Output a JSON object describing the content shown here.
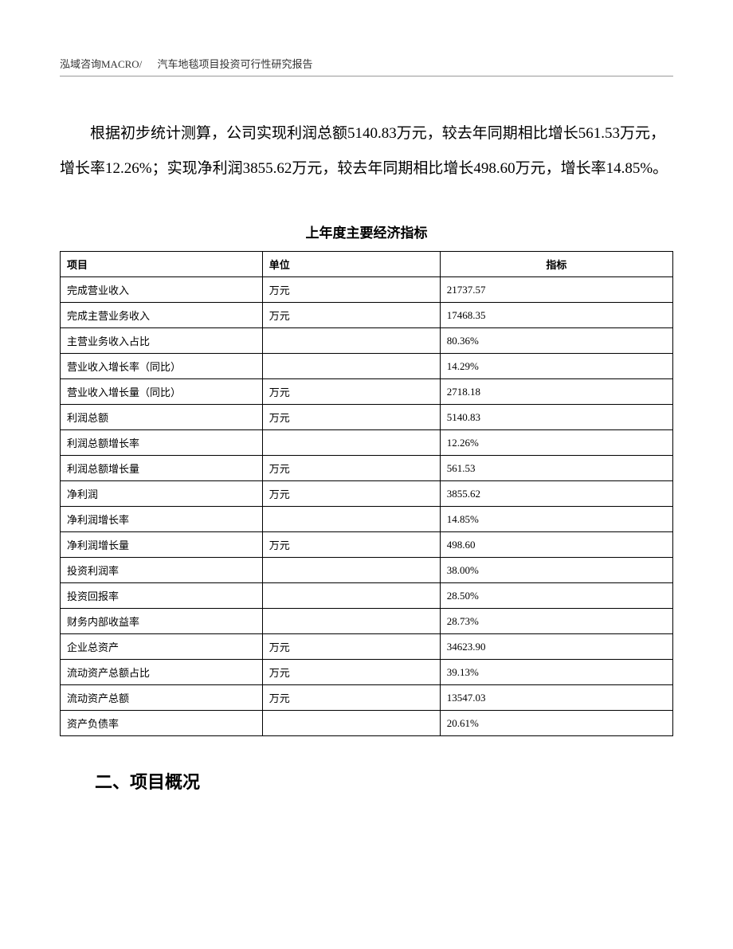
{
  "header": {
    "company": "泓域咨询MACRO/",
    "title": "汽车地毯项目投资可行性研究报告"
  },
  "body_paragraph": "根据初步统计测算，公司实现利润总额5140.83万元，较去年同期相比增长561.53万元，增长率12.26%；实现净利润3855.62万元，较去年同期相比增长498.60万元，增长率14.85%。",
  "table": {
    "title": "上年度主要经济指标",
    "columns": [
      "项目",
      "单位",
      "指标"
    ],
    "rows": [
      [
        "完成营业收入",
        "万元",
        "21737.57"
      ],
      [
        "完成主营业务收入",
        "万元",
        "17468.35"
      ],
      [
        "主营业务收入占比",
        "",
        "80.36%"
      ],
      [
        "营业收入增长率（同比）",
        "",
        "14.29%"
      ],
      [
        "营业收入增长量（同比）",
        "万元",
        "2718.18"
      ],
      [
        "利润总额",
        "万元",
        "5140.83"
      ],
      [
        "利润总额增长率",
        "",
        "12.26%"
      ],
      [
        "利润总额增长量",
        "万元",
        "561.53"
      ],
      [
        "净利润",
        "万元",
        "3855.62"
      ],
      [
        "净利润增长率",
        "",
        "14.85%"
      ],
      [
        "净利润增长量",
        "万元",
        "498.60"
      ],
      [
        "投资利润率",
        "",
        "38.00%"
      ],
      [
        "投资回报率",
        "",
        "28.50%"
      ],
      [
        "财务内部收益率",
        "",
        "28.73%"
      ],
      [
        "企业总资产",
        "万元",
        "34623.90"
      ],
      [
        "流动资产总额占比",
        "万元",
        "39.13%"
      ],
      [
        "流动资产总额",
        "万元",
        "13547.03"
      ],
      [
        "资产负债率",
        "",
        "20.61%"
      ]
    ]
  },
  "section_heading": "二、项目概况"
}
